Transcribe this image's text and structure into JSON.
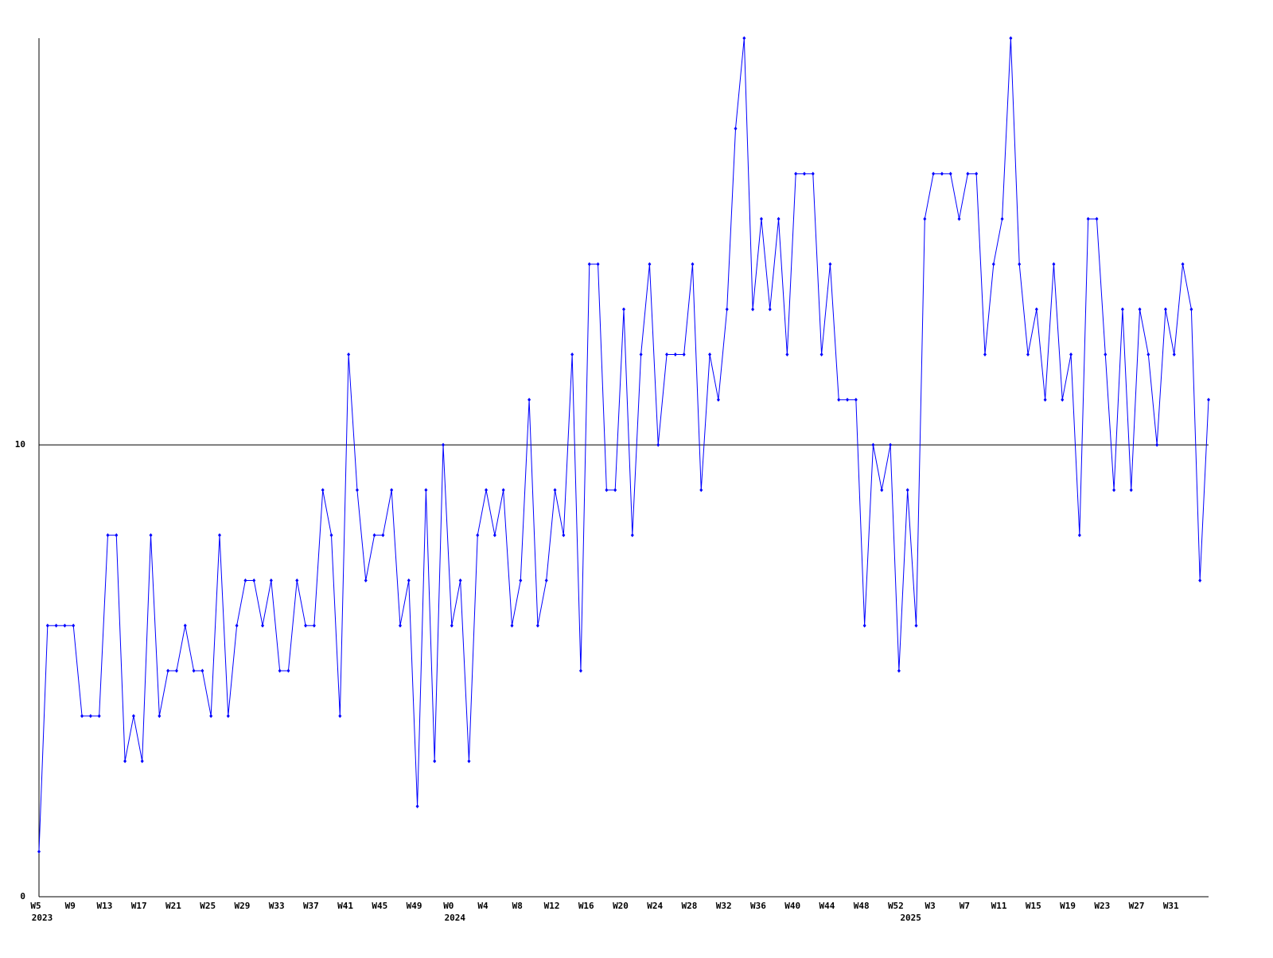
{
  "chart_data": {
    "type": "line",
    "categories": [
      "W5",
      null,
      null,
      null,
      "W9",
      null,
      null,
      null,
      "W13",
      null,
      null,
      null,
      "W17",
      null,
      null,
      null,
      "W21",
      null,
      null,
      null,
      "W25",
      null,
      null,
      null,
      "W29",
      null,
      null,
      null,
      "W33",
      null,
      null,
      null,
      "W37",
      null,
      null,
      null,
      "W41",
      null,
      null,
      null,
      "W45",
      null,
      null,
      null,
      "W49",
      null,
      null,
      null,
      "W0",
      null,
      null,
      null,
      "W4",
      null,
      null,
      null,
      "W8",
      null,
      null,
      null,
      "W12",
      null,
      null,
      null,
      "W16",
      null,
      null,
      null,
      "W20",
      null,
      null,
      null,
      "W24",
      null,
      null,
      null,
      "W28",
      null,
      null,
      null,
      "W32",
      null,
      null,
      null,
      "W36",
      null,
      null,
      null,
      "W40",
      null,
      null,
      null,
      "W44",
      null,
      null,
      null,
      "W48",
      null,
      null,
      null,
      "W52",
      null,
      null,
      null,
      "W3",
      null,
      null,
      null,
      "W7",
      null,
      null,
      null,
      "W11",
      null,
      null,
      null,
      "W15",
      null,
      null,
      null,
      "W19",
      null,
      null,
      null,
      "W23",
      null,
      null,
      null,
      "W27",
      null,
      null,
      null,
      "W31",
      null,
      null,
      null,
      null
    ],
    "years": [
      "2023",
      null,
      null,
      null,
      null,
      null,
      null,
      null,
      null,
      null,
      null,
      null,
      null,
      null,
      null,
      null,
      null,
      null,
      null,
      null,
      null,
      null,
      null,
      null,
      null,
      null,
      null,
      null,
      null,
      null,
      null,
      null,
      null,
      null,
      null,
      null,
      null,
      null,
      null,
      null,
      null,
      null,
      null,
      null,
      null,
      null,
      null,
      null,
      "2024",
      null,
      null,
      null,
      null,
      null,
      null,
      null,
      null,
      null,
      null,
      null,
      null,
      null,
      null,
      null,
      null,
      null,
      null,
      null,
      null,
      null,
      null,
      null,
      null,
      null,
      null,
      null,
      null,
      null,
      null,
      null,
      null,
      null,
      null,
      null,
      null,
      null,
      null,
      null,
      null,
      null,
      null,
      null,
      null,
      null,
      null,
      null,
      null,
      null,
      null,
      null,
      null,
      "2025",
      null,
      null,
      null,
      null,
      null,
      null,
      null,
      null,
      null,
      null,
      null,
      null,
      null,
      null,
      null,
      null,
      null,
      null,
      null,
      null,
      null,
      null,
      null,
      null,
      null,
      null,
      null,
      null,
      null,
      null,
      null,
      null,
      null,
      null,
      null
    ],
    "series": [
      {
        "color": "#0000ff",
        "values": [
          1,
          6,
          6,
          6,
          6,
          4,
          4,
          4,
          8,
          8,
          3,
          4,
          3,
          8,
          4,
          5,
          5,
          6,
          5,
          5,
          4,
          8,
          4,
          6,
          7,
          7,
          6,
          7,
          5,
          5,
          7,
          6,
          6,
          9,
          8,
          4,
          12,
          9,
          7,
          8,
          8,
          9,
          6,
          7,
          2,
          9,
          3,
          10,
          6,
          7,
          3,
          8,
          9,
          8,
          9,
          6,
          7,
          11,
          6,
          7,
          9,
          8,
          12,
          5,
          14,
          14,
          9,
          9,
          13,
          8,
          12,
          14,
          10,
          12,
          12,
          12,
          14,
          9,
          12,
          11,
          13,
          17,
          19,
          13,
          15,
          13,
          15,
          12,
          16,
          16,
          16,
          12,
          14,
          11,
          11,
          11,
          6,
          10,
          9,
          10,
          5,
          9,
          6,
          15,
          16,
          16,
          16,
          15,
          16,
          16,
          12,
          14,
          15,
          19,
          14,
          12,
          13,
          11,
          14,
          11,
          12,
          8,
          15,
          15,
          12,
          9,
          13,
          9,
          13,
          12,
          10,
          13,
          12,
          14,
          13,
          7,
          11
        ]
      }
    ],
    "ylim": [
      0,
      19
    ],
    "yticks": [
      0,
      10
    ],
    "grid": true
  }
}
